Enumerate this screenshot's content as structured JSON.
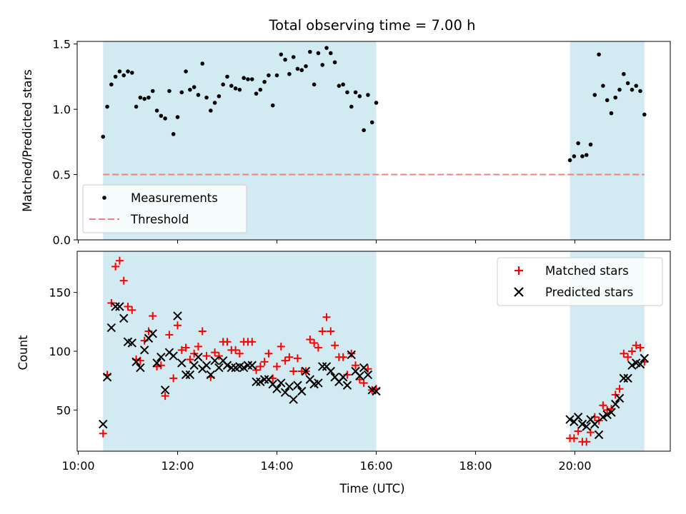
{
  "chart_data": {
    "type": "scatter",
    "title": "Total observing time = 7.00 h",
    "xlabel": "Time (UTC)",
    "x_ticks": [
      "10:00",
      "12:00",
      "14:00",
      "16:00",
      "18:00",
      "20:00"
    ],
    "shaded_intervals": [
      [
        "10:30",
        "16:00"
      ],
      [
        "19:54",
        "21:24"
      ]
    ],
    "colors": {
      "shade": "#add8e6",
      "measurements": "#000000",
      "threshold": "#f08080",
      "matched": "#ff0000",
      "predicted": "#000000",
      "legend_frame": "#cccccc"
    },
    "top": {
      "ylabel": "Matched/Predicted stars",
      "ylim": [
        0,
        1.52
      ],
      "y_ticks": [
        "0.0",
        "0.5",
        "1.0",
        "1.5"
      ],
      "threshold": 0.5,
      "legend_position": "lower-left",
      "legend": [
        {
          "label": "Measurements",
          "marker": "dot"
        },
        {
          "label": "Threshold",
          "marker": "dashed-line"
        }
      ],
      "measurements": [
        [
          "10:30",
          0.79
        ],
        [
          "10:35",
          1.02
        ],
        [
          "10:40",
          1.19
        ],
        [
          "10:45",
          1.25
        ],
        [
          "10:50",
          1.29
        ],
        [
          "10:55",
          1.26
        ],
        [
          "11:00",
          1.29
        ],
        [
          "11:05",
          1.28
        ],
        [
          "11:10",
          1.02
        ],
        [
          "11:15",
          1.09
        ],
        [
          "11:20",
          1.08
        ],
        [
          "11:25",
          1.09
        ],
        [
          "11:30",
          1.14
        ],
        [
          "11:35",
          0.99
        ],
        [
          "11:40",
          0.95
        ],
        [
          "11:45",
          0.93
        ],
        [
          "11:50",
          1.14
        ],
        [
          "11:55",
          0.81
        ],
        [
          "12:00",
          0.94
        ],
        [
          "12:05",
          1.13
        ],
        [
          "12:10",
          1.29
        ],
        [
          "12:15",
          1.15
        ],
        [
          "12:20",
          1.17
        ],
        [
          "12:25",
          1.11
        ],
        [
          "12:30",
          1.35
        ],
        [
          "12:35",
          1.09
        ],
        [
          "12:40",
          0.99
        ],
        [
          "12:45",
          1.05
        ],
        [
          "12:50",
          1.1
        ],
        [
          "12:55",
          1.19
        ],
        [
          "13:00",
          1.25
        ],
        [
          "13:05",
          1.18
        ],
        [
          "13:10",
          1.16
        ],
        [
          "13:15",
          1.15
        ],
        [
          "13:20",
          1.24
        ],
        [
          "13:25",
          1.23
        ],
        [
          "13:30",
          1.23
        ],
        [
          "13:35",
          1.12
        ],
        [
          "13:40",
          1.15
        ],
        [
          "13:45",
          1.21
        ],
        [
          "13:50",
          1.26
        ],
        [
          "13:55",
          1.03
        ],
        [
          "14:00",
          1.26
        ],
        [
          "14:05",
          1.42
        ],
        [
          "14:10",
          1.38
        ],
        [
          "14:15",
          1.27
        ],
        [
          "14:20",
          1.4
        ],
        [
          "14:25",
          1.31
        ],
        [
          "14:30",
          1.3
        ],
        [
          "14:35",
          1.33
        ],
        [
          "14:40",
          1.44
        ],
        [
          "14:45",
          1.19
        ],
        [
          "14:50",
          1.43
        ],
        [
          "14:55",
          1.34
        ],
        [
          "15:00",
          1.47
        ],
        [
          "15:05",
          1.43
        ],
        [
          "15:10",
          1.36
        ],
        [
          "15:15",
          1.18
        ],
        [
          "15:20",
          1.19
        ],
        [
          "15:25",
          1.13
        ],
        [
          "15:30",
          1.02
        ],
        [
          "15:35",
          1.13
        ],
        [
          "15:40",
          1.1
        ],
        [
          "15:45",
          0.84
        ],
        [
          "15:50",
          1.11
        ],
        [
          "15:55",
          0.9
        ],
        [
          "16:00",
          1.05
        ],
        [
          "19:54",
          0.61
        ],
        [
          "19:59",
          0.64
        ],
        [
          "20:04",
          0.74
        ],
        [
          "20:09",
          0.64
        ],
        [
          "20:14",
          0.65
        ],
        [
          "20:19",
          0.73
        ],
        [
          "20:24",
          1.11
        ],
        [
          "20:29",
          1.42
        ],
        [
          "20:34",
          1.18
        ],
        [
          "20:39",
          1.07
        ],
        [
          "20:44",
          0.97
        ],
        [
          "20:49",
          1.09
        ],
        [
          "20:54",
          1.15
        ],
        [
          "20:59",
          1.27
        ],
        [
          "21:04",
          1.2
        ],
        [
          "21:09",
          1.15
        ],
        [
          "21:14",
          1.18
        ],
        [
          "21:19",
          1.14
        ],
        [
          "21:24",
          0.96
        ]
      ]
    },
    "bottom": {
      "ylabel": "Count",
      "ylim": [
        15,
        185
      ],
      "y_ticks": [
        "50",
        "100",
        "150"
      ],
      "legend_position": "upper-right",
      "legend": [
        {
          "label": "Matched stars",
          "marker": "plus"
        },
        {
          "label": "Predicted stars",
          "marker": "x"
        }
      ],
      "matched": [
        [
          "10:30",
          30
        ],
        [
          "10:35",
          80
        ],
        [
          "10:40",
          141
        ],
        [
          "10:45",
          172
        ],
        [
          "10:50",
          177
        ],
        [
          "10:55",
          160
        ],
        [
          "11:00",
          138
        ],
        [
          "11:05",
          135
        ],
        [
          "11:10",
          93
        ],
        [
          "11:15",
          92
        ],
        [
          "11:20",
          109
        ],
        [
          "11:25",
          117
        ],
        [
          "11:30",
          130
        ],
        [
          "11:35",
          87
        ],
        [
          "11:40",
          88
        ],
        [
          "11:45",
          62
        ],
        [
          "11:50",
          114
        ],
        [
          "11:55",
          77
        ],
        [
          "12:00",
          122
        ],
        [
          "12:05",
          101
        ],
        [
          "12:10",
          103
        ],
        [
          "12:15",
          93
        ],
        [
          "12:20",
          98
        ],
        [
          "12:25",
          104
        ],
        [
          "12:30",
          117
        ],
        [
          "12:35",
          96
        ],
        [
          "12:40",
          78
        ],
        [
          "12:45",
          99
        ],
        [
          "12:50",
          96
        ],
        [
          "12:55",
          108
        ],
        [
          "13:00",
          108
        ],
        [
          "13:05",
          101
        ],
        [
          "13:10",
          101
        ],
        [
          "13:15",
          98
        ],
        [
          "13:20",
          108
        ],
        [
          "13:25",
          108
        ],
        [
          "13:30",
          108
        ],
        [
          "13:35",
          84
        ],
        [
          "13:40",
          87
        ],
        [
          "13:45",
          91
        ],
        [
          "13:50",
          98
        ],
        [
          "13:55",
          77
        ],
        [
          "14:00",
          87
        ],
        [
          "14:05",
          104
        ],
        [
          "14:10",
          92
        ],
        [
          "14:15",
          95
        ],
        [
          "14:20",
          83
        ],
        [
          "14:25",
          94
        ],
        [
          "14:30",
          83
        ],
        [
          "14:35",
          83
        ],
        [
          "14:40",
          110
        ],
        [
          "14:45",
          107
        ],
        [
          "14:50",
          103
        ],
        [
          "14:55",
          117
        ],
        [
          "15:00",
          129
        ],
        [
          "15:05",
          117
        ],
        [
          "15:10",
          105
        ],
        [
          "15:15",
          95
        ],
        [
          "15:20",
          95
        ],
        [
          "15:25",
          80
        ],
        [
          "15:30",
          98
        ],
        [
          "15:35",
          88
        ],
        [
          "15:40",
          76
        ],
        [
          "15:45",
          73
        ],
        [
          "15:50",
          85
        ],
        [
          "15:55",
          67
        ],
        [
          "16:00",
          68
        ],
        [
          "19:54",
          26
        ],
        [
          "19:59",
          26
        ],
        [
          "20:04",
          32
        ],
        [
          "20:09",
          23
        ],
        [
          "20:14",
          23
        ],
        [
          "20:19",
          31
        ],
        [
          "20:24",
          44
        ],
        [
          "20:29",
          41
        ],
        [
          "20:34",
          54
        ],
        [
          "20:39",
          50
        ],
        [
          "20:44",
          51
        ],
        [
          "20:49",
          63
        ],
        [
          "20:54",
          68
        ],
        [
          "20:59",
          98
        ],
        [
          "21:04",
          95
        ],
        [
          "21:09",
          100
        ],
        [
          "21:14",
          105
        ],
        [
          "21:19",
          103
        ],
        [
          "21:24",
          91
        ]
      ],
      "predicted": [
        [
          "10:30",
          38
        ],
        [
          "10:35",
          78
        ],
        [
          "10:40",
          120
        ],
        [
          "10:45",
          138
        ],
        [
          "10:50",
          138
        ],
        [
          "10:55",
          128
        ],
        [
          "11:00",
          108
        ],
        [
          "11:05",
          107
        ],
        [
          "11:10",
          91
        ],
        [
          "11:15",
          86
        ],
        [
          "11:20",
          101
        ],
        [
          "11:25",
          111
        ],
        [
          "11:30",
          115
        ],
        [
          "11:35",
          90
        ],
        [
          "11:40",
          95
        ],
        [
          "11:45",
          67
        ],
        [
          "11:50",
          99
        ],
        [
          "11:55",
          96
        ],
        [
          "12:00",
          130
        ],
        [
          "12:05",
          90
        ],
        [
          "12:10",
          80
        ],
        [
          "12:15",
          80
        ],
        [
          "12:20",
          88
        ],
        [
          "12:25",
          95
        ],
        [
          "12:30",
          85
        ],
        [
          "12:35",
          88
        ],
        [
          "12:40",
          80
        ],
        [
          "12:45",
          92
        ],
        [
          "12:50",
          86
        ],
        [
          "12:55",
          92
        ],
        [
          "13:00",
          88
        ],
        [
          "13:05",
          86
        ],
        [
          "13:10",
          86
        ],
        [
          "13:15",
          87
        ],
        [
          "13:20",
          86
        ],
        [
          "13:25",
          88
        ],
        [
          "13:30",
          88
        ],
        [
          "13:35",
          74
        ],
        [
          "13:40",
          74
        ],
        [
          "13:45",
          76
        ],
        [
          "13:50",
          76
        ],
        [
          "13:55",
          72
        ],
        [
          "14:00",
          68
        ],
        [
          "14:05",
          73
        ],
        [
          "14:10",
          65
        ],
        [
          "14:15",
          70
        ],
        [
          "14:20",
          59
        ],
        [
          "14:25",
          71
        ],
        [
          "14:30",
          66
        ],
        [
          "14:35",
          83
        ],
        [
          "14:40",
          76
        ],
        [
          "14:45",
          72
        ],
        [
          "14:50",
          73
        ],
        [
          "14:55",
          87
        ],
        [
          "15:00",
          87
        ],
        [
          "15:05",
          83
        ],
        [
          "15:10",
          78
        ],
        [
          "15:15",
          74
        ],
        [
          "15:20",
          78
        ],
        [
          "15:25",
          71
        ],
        [
          "15:30",
          97
        ],
        [
          "15:35",
          83
        ],
        [
          "15:40",
          79
        ],
        [
          "15:45",
          86
        ],
        [
          "15:50",
          80
        ],
        [
          "15:55",
          67
        ],
        [
          "16:00",
          66
        ],
        [
          "19:54",
          42
        ],
        [
          "19:59",
          40
        ],
        [
          "20:04",
          44
        ],
        [
          "20:09",
          38
        ],
        [
          "20:14",
          36
        ],
        [
          "20:19",
          42
        ],
        [
          "20:24",
          38
        ],
        [
          "20:29",
          29
        ],
        [
          "20:34",
          44
        ],
        [
          "20:39",
          46
        ],
        [
          "20:44",
          48
        ],
        [
          "20:49",
          55
        ],
        [
          "20:54",
          60
        ],
        [
          "20:59",
          77
        ],
        [
          "21:04",
          77
        ],
        [
          "21:09",
          88
        ],
        [
          "21:14",
          90
        ],
        [
          "21:19",
          89
        ],
        [
          "21:24",
          94
        ]
      ]
    }
  }
}
